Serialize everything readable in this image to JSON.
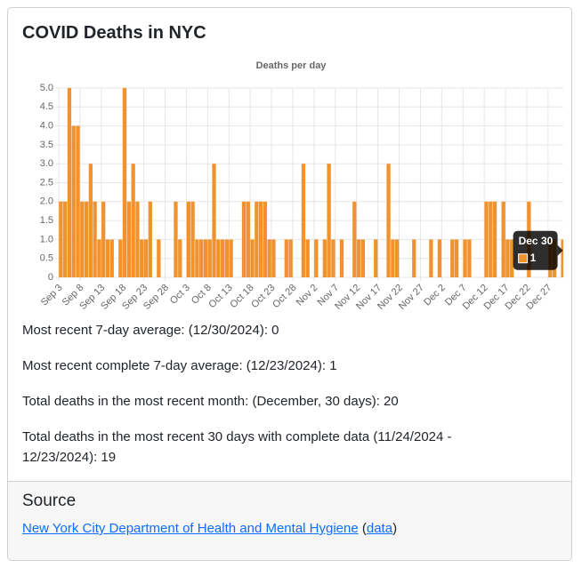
{
  "header": {
    "title": "COVID Deaths in NYC"
  },
  "chart_data": {
    "type": "bar",
    "title": "Deaths per day",
    "color": "#f0932e",
    "grid": true,
    "categories": [
      "Sep 3",
      null,
      null,
      null,
      null,
      "Sep 8",
      null,
      null,
      null,
      null,
      "Sep 13",
      null,
      null,
      null,
      null,
      "Sep 18",
      null,
      null,
      null,
      null,
      "Sep 23",
      null,
      null,
      null,
      null,
      "Sep 28",
      null,
      null,
      null,
      null,
      "Oct 3",
      null,
      null,
      null,
      null,
      "Oct 8",
      null,
      null,
      null,
      null,
      "Oct 13",
      null,
      null,
      null,
      null,
      "Oct 18",
      null,
      null,
      null,
      null,
      "Oct 23",
      null,
      null,
      null,
      null,
      "Oct 28",
      null,
      null,
      null,
      null,
      "Nov 2",
      null,
      null,
      null,
      null,
      "Nov 7",
      null,
      null,
      null,
      null,
      "Nov 12",
      null,
      null,
      null,
      null,
      "Nov 17",
      null,
      null,
      null,
      null,
      "Nov 22",
      null,
      null,
      null,
      null,
      "Nov 27",
      null,
      null,
      null,
      null,
      "Dec 2",
      null,
      null,
      null,
      null,
      "Dec 7",
      null,
      null,
      null,
      null,
      "Dec 12",
      null,
      null,
      null,
      null,
      "Dec 17",
      null,
      null,
      null,
      null,
      "Dec 22",
      null,
      null,
      null,
      null,
      "Dec 27",
      null,
      null,
      null
    ],
    "values": [
      2,
      2,
      5,
      4,
      4,
      2,
      2,
      3,
      2,
      1,
      2,
      1,
      1,
      0,
      1,
      5,
      2,
      3,
      2,
      1,
      1,
      2,
      0,
      1,
      0,
      0,
      0,
      2,
      1,
      0,
      2,
      2,
      1,
      1,
      1,
      1,
      3,
      1,
      1,
      1,
      1,
      0,
      0,
      2,
      2,
      1,
      2,
      2,
      2,
      1,
      1,
      0,
      0,
      1,
      1,
      0,
      0,
      3,
      1,
      0,
      1,
      0,
      1,
      3,
      1,
      0,
      1,
      0,
      0,
      2,
      1,
      1,
      0,
      0,
      1,
      0,
      0,
      3,
      1,
      1,
      0,
      0,
      0,
      1,
      0,
      0,
      0,
      1,
      0,
      1,
      0,
      0,
      1,
      1,
      0,
      1,
      1,
      0,
      0,
      0,
      2,
      2,
      2,
      0,
      2,
      1,
      1,
      0,
      0,
      0,
      2,
      0,
      0,
      0,
      0,
      1,
      1,
      0,
      1
    ],
    "ylim": [
      0,
      5
    ],
    "yticks": [
      0,
      0.5,
      {
        "value": 1,
        "label": "1.0"
      },
      1.5,
      {
        "value": 2,
        "label": "2.0"
      },
      2.5,
      {
        "value": 3,
        "label": "3.0"
      },
      3.5,
      {
        "value": 4,
        "label": "4.0"
      },
      4.5,
      {
        "value": 5,
        "label": "5.0"
      }
    ],
    "tooltip_title": "Dec 30"
  },
  "stats": [
    "Most recent 7-day average: (12/30/2024): 0",
    "Most recent complete 7-day average: (12/23/2024): 1",
    "Total deaths in the most recent month: (December, 30 days): 20",
    "Total deaths in the most recent 30 days with complete data (11/24/2024 - 12/23/2024): 19"
  ],
  "source": {
    "title": "Source",
    "parts": [
      "New York City Department of Health and Mental Hygiene",
      " (",
      "data",
      ")"
    ]
  }
}
